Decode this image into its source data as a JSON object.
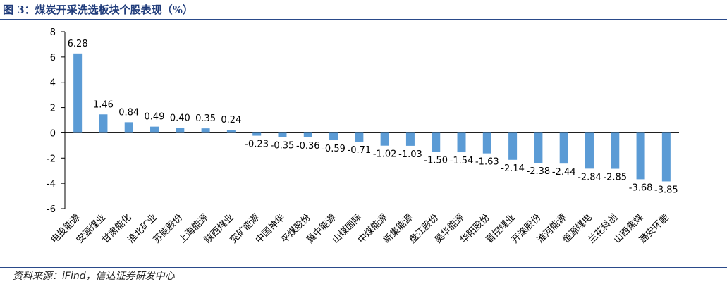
{
  "title": "图 3：煤炭开采洗选板块个股表现（%）",
  "source": "资料来源：iFind，信达证券研发中心",
  "chart_data": {
    "type": "bar",
    "categories": [
      "电投能源",
      "安源煤业",
      "甘肃能化",
      "淮北矿业",
      "苏能股份",
      "上海能源",
      "陕西煤业",
      "兖矿能源",
      "中国神华",
      "平煤股份",
      "冀中能源",
      "山煤国际",
      "中煤能源",
      "新集能源",
      "盘江股份",
      "昊华能源",
      "华阳股份",
      "晋控煤业",
      "开滦股份",
      "淮河能源",
      "恒源煤电",
      "兰花科创",
      "山西焦煤",
      "潞安环能"
    ],
    "values": [
      6.28,
      1.46,
      0.84,
      0.49,
      0.4,
      0.35,
      0.24,
      -0.23,
      -0.35,
      -0.36,
      -0.59,
      -0.71,
      -1.02,
      -1.03,
      -1.5,
      -1.54,
      -1.63,
      -2.14,
      -2.38,
      -2.44,
      -2.84,
      -2.85,
      -3.68,
      -3.85
    ],
    "labels": [
      "6.28",
      "1.46",
      "0.84",
      "0.49",
      "0.40",
      "0.35",
      "0.24",
      "-0.23",
      "-0.35",
      "-0.36",
      "-0.59",
      "-0.71",
      "-1.02",
      "-1.03",
      "-1.50",
      "-1.54",
      "-1.63",
      "-2.14",
      "-2.38",
      "-2.44",
      "-2.84",
      "-2.85",
      "-3.68",
      "-3.85"
    ],
    "yticks": [
      "8",
      "6",
      "4",
      "2",
      "0",
      "-2",
      "-4",
      "-6"
    ],
    "ylim": [
      -6,
      8
    ],
    "bar_color": "#5b9bd5",
    "grid": false
  }
}
